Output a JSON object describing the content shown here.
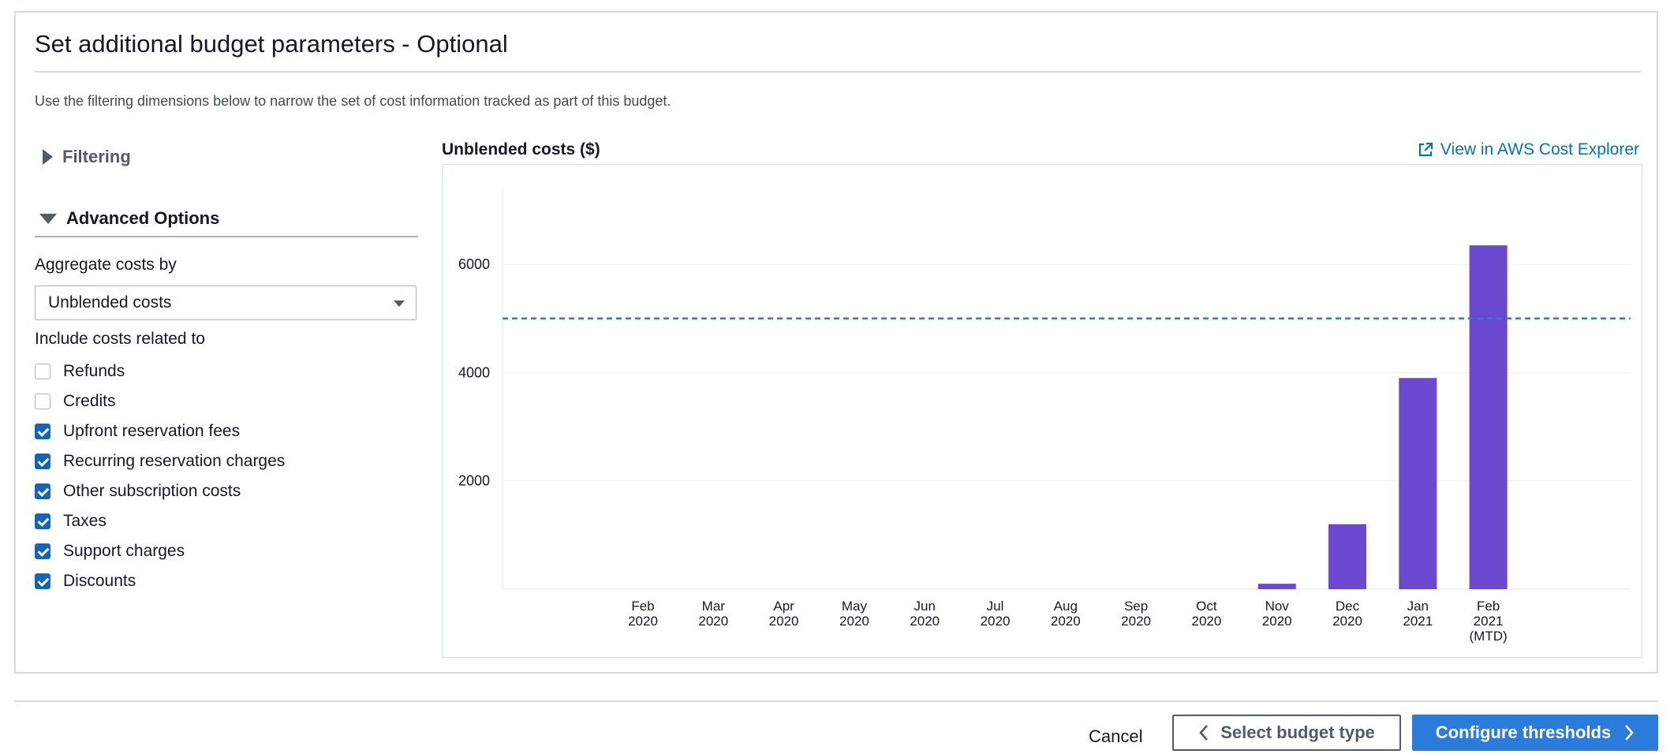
{
  "panel": {
    "title": "Set additional budget parameters - Optional",
    "description": "Use the filtering dimensions below to narrow the set of cost information tracked as part of this budget."
  },
  "filtering": {
    "label": "Filtering",
    "expanded": false
  },
  "advanced": {
    "label": "Advanced Options",
    "expanded": true,
    "aggregate_label": "Aggregate costs by",
    "aggregate_value": "Unblended costs",
    "include_label": "Include costs related to",
    "options": [
      {
        "label": "Refunds",
        "checked": false
      },
      {
        "label": "Credits",
        "checked": false
      },
      {
        "label": "Upfront reservation fees",
        "checked": true
      },
      {
        "label": "Recurring reservation charges",
        "checked": true
      },
      {
        "label": "Other subscription costs",
        "checked": true
      },
      {
        "label": "Taxes",
        "checked": true
      },
      {
        "label": "Support charges",
        "checked": true
      },
      {
        "label": "Discounts",
        "checked": true
      }
    ]
  },
  "chart_header": {
    "title": "Unblended costs ($)",
    "explorer_link": "View in AWS Cost Explorer"
  },
  "chart_data": {
    "type": "bar",
    "title": "Unblended costs ($)",
    "categories": [
      [
        "Feb",
        "2020"
      ],
      [
        "Mar",
        "2020"
      ],
      [
        "Apr",
        "2020"
      ],
      [
        "May",
        "2020"
      ],
      [
        "Jun",
        "2020"
      ],
      [
        "Jul",
        "2020"
      ],
      [
        "Aug",
        "2020"
      ],
      [
        "Sep",
        "2020"
      ],
      [
        "Oct",
        "2020"
      ],
      [
        "Nov",
        "2020"
      ],
      [
        "Dec",
        "2020"
      ],
      [
        "Jan",
        "2021"
      ],
      [
        "Feb",
        "2021",
        "(MTD)"
      ]
    ],
    "values": [
      0,
      0,
      0,
      0,
      0,
      0,
      0,
      0,
      0,
      100,
      1200,
      3900,
      6350
    ],
    "budget_line": 5000,
    "yticks": [
      2000,
      4000,
      6000
    ],
    "ylim": [
      0,
      7400
    ],
    "bar_color": "#6b48d0",
    "budget_line_color": "#2b7bdb",
    "grid": true
  },
  "footer": {
    "cancel": "Cancel",
    "previous": "Select budget type",
    "next": "Configure thresholds"
  },
  "colors": {
    "accent": "#2b7bdb",
    "link": "#0073bb",
    "checkbox": "#1166bb"
  }
}
